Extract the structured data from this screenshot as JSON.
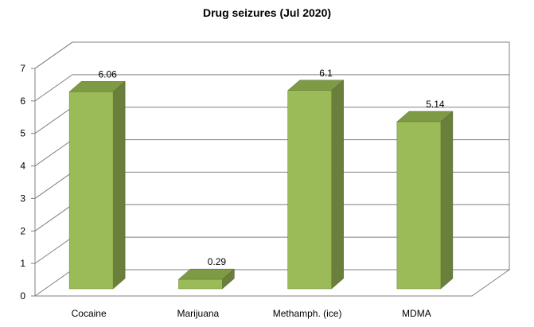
{
  "chart_data": {
    "type": "bar",
    "title": "Drug seizures (Jul 2020)",
    "categories": [
      "Cocaine",
      "Marijuana",
      "Methamph. (ice)",
      "MDMA"
    ],
    "values": [
      6.06,
      0.29,
      6.1,
      5.14
    ],
    "data_labels": [
      "6.06",
      "0.29",
      "6.1",
      "5.14"
    ],
    "y_ticks": [
      "0",
      "1",
      "2",
      "3",
      "4",
      "5",
      "6",
      "7"
    ],
    "ylim": [
      0,
      7
    ],
    "grid": true,
    "style": "3d-column",
    "colors": {
      "bar_front": "#9bbb59",
      "bar_side": "#6a7f3c",
      "bar_top": "#7e9a45",
      "gridline": "#808080",
      "axis": "#808080"
    }
  }
}
